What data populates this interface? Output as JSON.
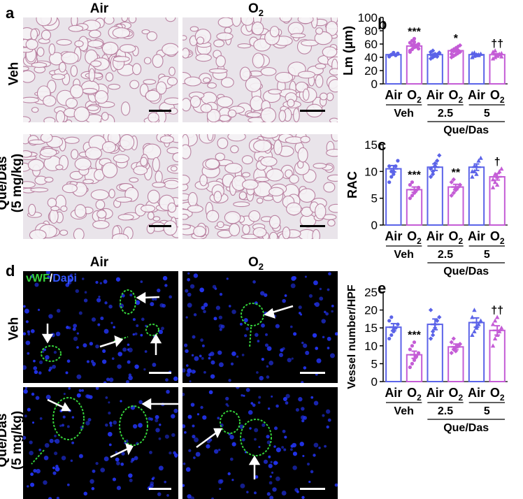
{
  "panels": {
    "a": "a",
    "b": "b",
    "c": "c",
    "d": "d",
    "e": "e"
  },
  "columns": {
    "air": "Air",
    "o2_base": "O",
    "o2_sub": "2"
  },
  "rows": {
    "veh": "Veh",
    "queDas_line1": "Que/Das",
    "queDas_line2": "(5 mg/kg)"
  },
  "stain": {
    "vwf": "vWF",
    "slash": "/",
    "dapi": "Dapi"
  },
  "colors": {
    "air": "#5b63e8",
    "o2": "#c45cd6",
    "vwf": "#35d13a",
    "dapi": "#2233ee"
  },
  "xgroup": {
    "air": "Air",
    "o2_base": "O",
    "o2_sub": "2",
    "veh": "Veh",
    "d25": "2.5",
    "d5": "5",
    "queDas": "Que/Das"
  },
  "chart_data": [
    {
      "type": "bar",
      "panel": "b",
      "ylabel": "Lm (μm)",
      "ylim": [
        0,
        100
      ],
      "yticks": [
        0,
        20,
        40,
        60,
        80,
        100
      ],
      "categories": [
        "Air",
        "O2",
        "Air",
        "O2",
        "Air",
        "O2"
      ],
      "groups": [
        "Veh",
        "2.5",
        "5"
      ],
      "values": [
        44,
        57,
        44,
        50,
        44,
        44
      ],
      "errors": [
        1,
        2.5,
        1.5,
        2,
        1,
        1.5
      ],
      "annotations": [
        "",
        "***",
        "",
        "*",
        "",
        "††"
      ],
      "points": [
        [
          42,
          44,
          45,
          43,
          46,
          41,
          44,
          47,
          43,
          45,
          42,
          44
        ],
        [
          48,
          52,
          55,
          58,
          60,
          62,
          65,
          68,
          56,
          53,
          50,
          59,
          63
        ],
        [
          38,
          40,
          42,
          44,
          46,
          48,
          43,
          45,
          41,
          47,
          44,
          50
        ],
        [
          40,
          42,
          44,
          46,
          48,
          50,
          52,
          54,
          56,
          58,
          45,
          49,
          53,
          51
        ],
        [
          40,
          42,
          43,
          44,
          45,
          46,
          47,
          44,
          43,
          45
        ],
        [
          38,
          40,
          42,
          44,
          46,
          48,
          50,
          43,
          45,
          41
        ]
      ]
    },
    {
      "type": "bar",
      "panel": "c",
      "ylabel": "RAC",
      "ylim": [
        0,
        15
      ],
      "yticks": [
        0,
        5,
        10,
        15
      ],
      "categories": [
        "Air",
        "O2",
        "Air",
        "O2",
        "Air",
        "O2"
      ],
      "groups": [
        "Veh",
        "2.5",
        "5"
      ],
      "values": [
        10.5,
        6.6,
        10.8,
        7.1,
        10.8,
        9.0
      ],
      "errors": [
        0.6,
        0.5,
        0.6,
        0.5,
        0.6,
        0.6
      ],
      "annotations": [
        "",
        "***",
        "",
        "**",
        "",
        "†"
      ],
      "points": [
        [
          8,
          9,
          10,
          11,
          12,
          11,
          10,
          9.5
        ],
        [
          5,
          5.5,
          6,
          6.5,
          7,
          7.5,
          8,
          6
        ],
        [
          9,
          10,
          11,
          12,
          13,
          10.5,
          9.5,
          11.5
        ],
        [
          5.5,
          6,
          6.5,
          7,
          7.5,
          8,
          8.5,
          6.8
        ],
        [
          9,
          10,
          11,
          12,
          12.5,
          10,
          11,
          9.5
        ],
        [
          7,
          8,
          9,
          10,
          10.5,
          8.5,
          9.5,
          7.5
        ]
      ]
    },
    {
      "type": "bar",
      "panel": "e",
      "ylabel": "Vessel number/HPF",
      "ylim": [
        0,
        25
      ],
      "yticks": [
        0,
        5,
        10,
        15,
        20,
        25
      ],
      "categories": [
        "Air",
        "O2",
        "Air",
        "O2",
        "Air",
        "O2"
      ],
      "groups": [
        "Veh",
        "2.5",
        "5"
      ],
      "values": [
        15.2,
        7.5,
        16.0,
        9.7,
        16.5,
        14.3
      ],
      "errors": [
        1.0,
        1.0,
        1.5,
        0.8,
        1.3,
        1.3
      ],
      "annotations": [
        "",
        "***",
        "",
        "",
        "",
        "††"
      ],
      "points": [
        [
          12,
          13,
          14,
          15,
          16,
          17,
          18,
          14.5
        ],
        [
          4,
          5,
          6,
          7,
          8,
          9,
          10,
          11
        ],
        [
          12,
          13,
          15,
          17,
          18,
          20,
          14,
          16
        ],
        [
          8,
          9,
          9.5,
          10,
          10.5,
          11,
          12,
          8.5,
          9.8
        ],
        [
          13,
          14,
          15,
          16,
          17,
          18,
          20,
          15.5
        ],
        [
          10,
          12,
          13,
          14,
          15,
          16,
          17,
          18
        ]
      ]
    }
  ]
}
